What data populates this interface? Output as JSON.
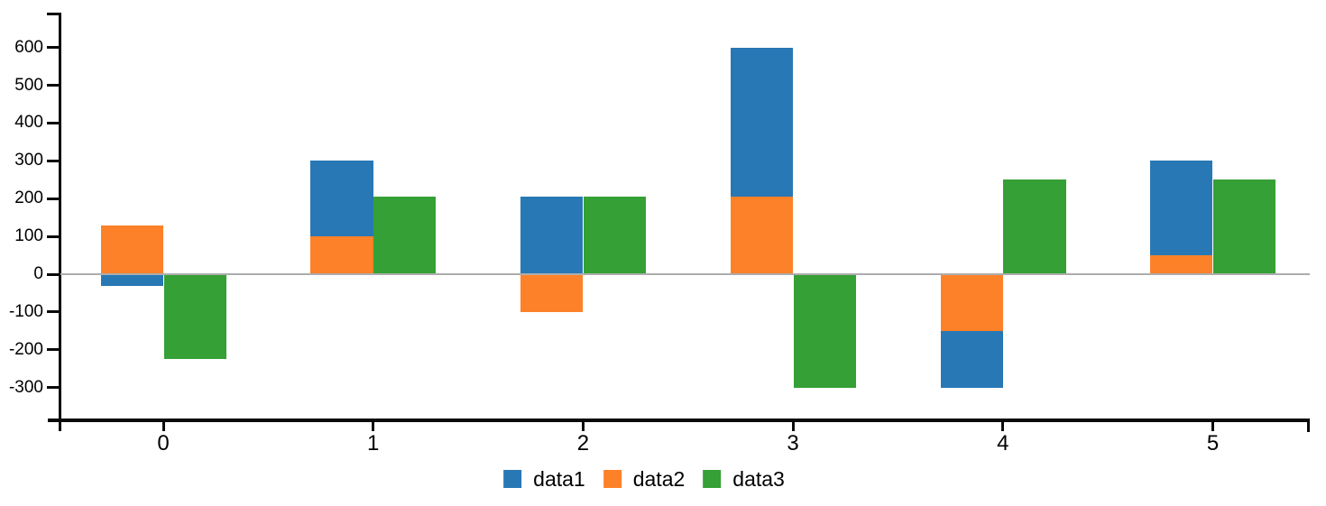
{
  "chart_data": {
    "type": "bar",
    "title": "",
    "xlabel": "",
    "ylabel": "",
    "categories": [
      "0",
      "1",
      "2",
      "3",
      "4",
      "5"
    ],
    "series": [
      {
        "name": "data1",
        "color": "#2878B5",
        "stack": "A",
        "values": [
          -30,
          200,
          205,
          395,
          -150,
          250
        ]
      },
      {
        "name": "data2",
        "color": "#FC8129",
        "stack": "A",
        "values": [
          130,
          100,
          -100,
          205,
          -150,
          50
        ]
      },
      {
        "name": "data3",
        "color": "#35A035",
        "stack": "B",
        "values": [
          -225,
          205,
          205,
          -300,
          250,
          250
        ]
      }
    ],
    "stack_draw_order": [
      "data2",
      "data1"
    ],
    "yticks": [
      600,
      500,
      400,
      300,
      200,
      100,
      0,
      -100,
      -200,
      -300
    ],
    "ylim": [
      -410,
      690
    ],
    "grid": false,
    "zero_line": true,
    "legend_position": "bottom",
    "legend_entries": [
      "data1",
      "data2",
      "data3"
    ]
  },
  "legend_items": [
    {
      "label": "data1",
      "color": "#2878B5"
    },
    {
      "label": "data2",
      "color": "#FC8129"
    },
    {
      "label": "data3",
      "color": "#35A035"
    }
  ],
  "colors": {
    "axis": "#0a0a0a",
    "zero_line": "#adadad",
    "background": "#ffffff",
    "text": "#000000"
  }
}
